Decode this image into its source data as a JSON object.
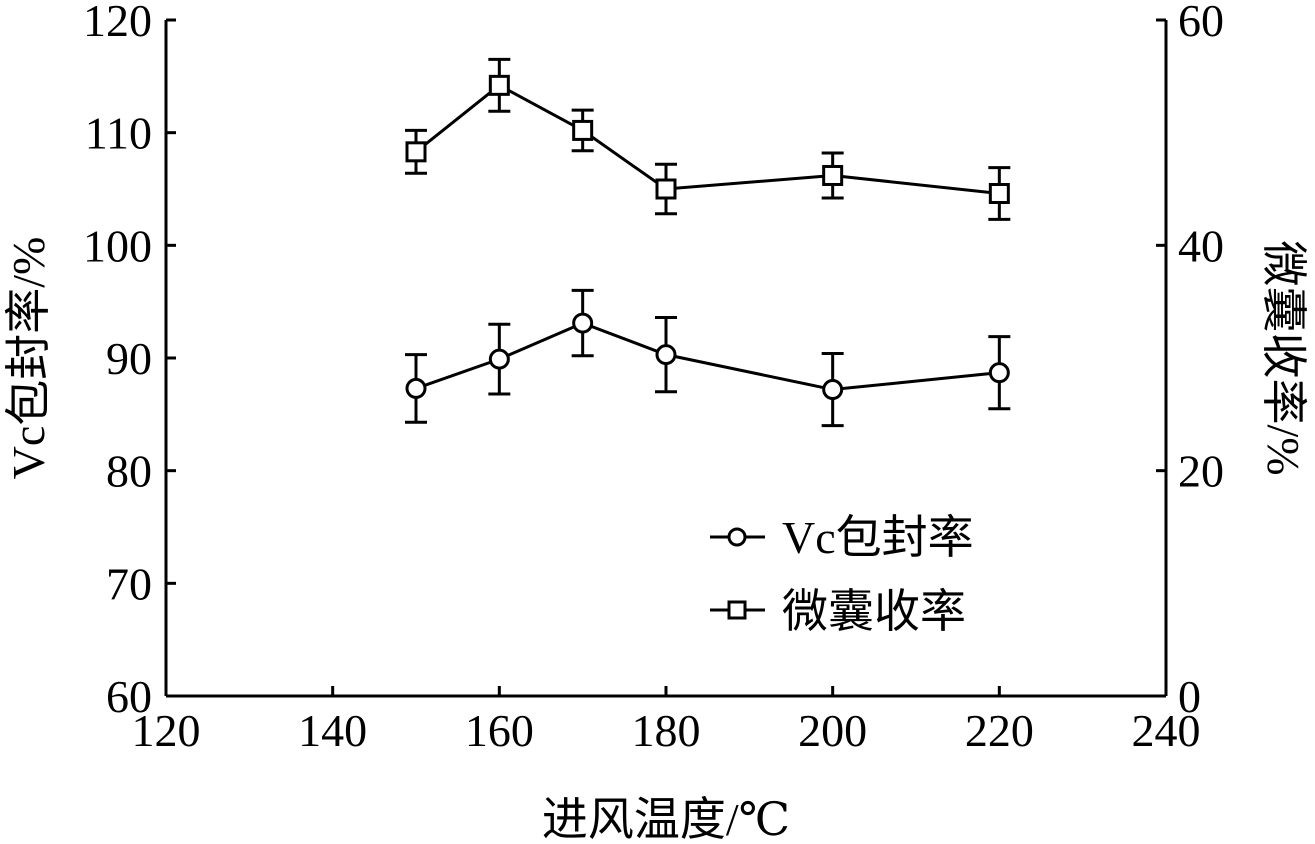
{
  "chart_data": {
    "type": "line",
    "title": "",
    "xlabel": "进风温度/℃",
    "ylabel_left": "Vc包封率/%",
    "ylabel_right": "微囊收率/%",
    "xlim": [
      120,
      240
    ],
    "ylim_left": [
      60,
      120
    ],
    "ylim_right": [
      0,
      60
    ],
    "x_ticks": [
      "120",
      "140",
      "160",
      "180",
      "200",
      "220",
      "240"
    ],
    "y_left_ticks": [
      "60",
      "70",
      "80",
      "90",
      "100",
      "110",
      "120"
    ],
    "y_right_ticks": [
      "0",
      "20",
      "40",
      "60"
    ],
    "legend_position": "lower-right",
    "grid": false,
    "series": [
      {
        "name": "Vc包封率",
        "axis": "left",
        "marker": "circle",
        "x": [
          150,
          160,
          170,
          180,
          200,
          220
        ],
        "y": [
          87.3,
          89.9,
          93.1,
          90.3,
          87.2,
          88.7
        ],
        "err": [
          3.0,
          3.1,
          2.9,
          3.3,
          3.2,
          3.2
        ]
      },
      {
        "name": "微囊收率",
        "axis": "right",
        "marker": "square",
        "x": [
          150,
          160,
          170,
          180,
          200,
          220
        ],
        "y": [
          48.3,
          54.2,
          50.2,
          45.0,
          46.2,
          44.6
        ],
        "err": [
          1.9,
          2.3,
          1.8,
          2.2,
          2.0,
          2.3
        ]
      }
    ]
  }
}
